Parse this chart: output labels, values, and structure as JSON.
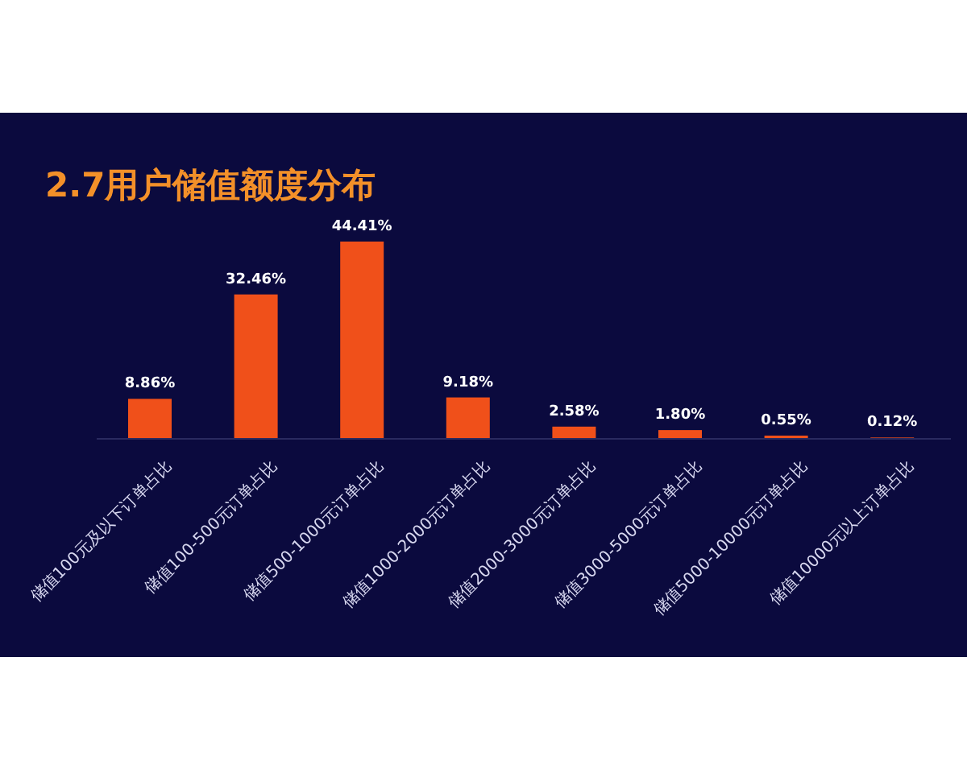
{
  "chart_data": {
    "type": "bar",
    "title": "2.7用户储值额度分布",
    "categories": [
      "储值100元及以下订单占比",
      "储值100-500元订单占比",
      "储值500-1000元订单占比",
      "储值1000-2000元订单占比",
      "储值2000-3000元订单占比",
      "储值3000-5000元订单占比",
      "储值5000-10000元订单占比",
      "储值10000元以上订单占比"
    ],
    "values": [
      8.86,
      32.46,
      44.41,
      9.18,
      2.58,
      1.8,
      0.55,
      0.12
    ],
    "value_labels": [
      "8.86%",
      "32.46%",
      "44.41%",
      "9.18%",
      "2.58%",
      "1.80%",
      "0.55%",
      "0.12%"
    ],
    "color": "#f0501a"
  }
}
